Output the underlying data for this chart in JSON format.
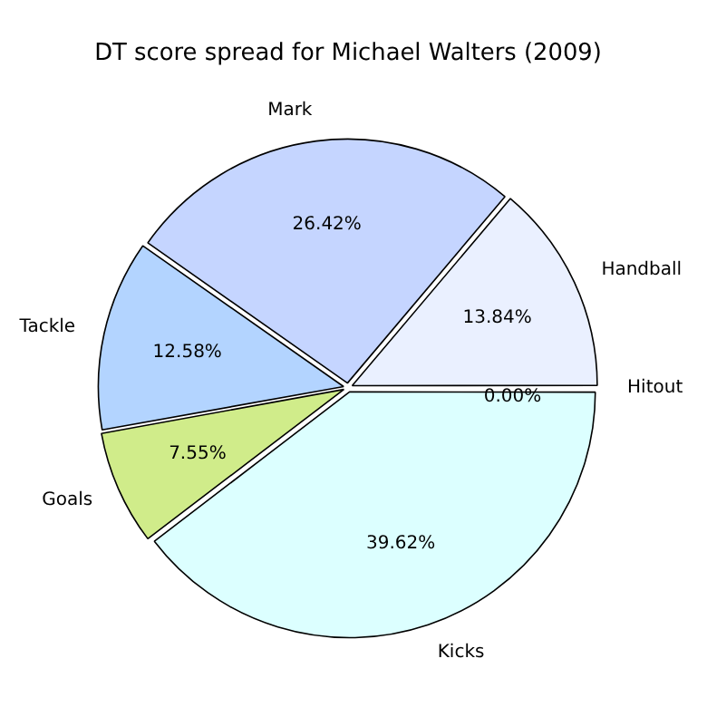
{
  "chart_data": {
    "type": "pie",
    "title": "DT score spread for Michael Walters (2009)",
    "categories": [
      "Hitout",
      "Kicks",
      "Goals",
      "Tackle",
      "Mark",
      "Handball"
    ],
    "values": [
      0.0,
      39.62,
      7.55,
      12.58,
      26.42,
      13.84
    ],
    "colors": [
      "#e0e0ff",
      "#dcffff",
      "#d0ec8a",
      "#b3d4ff",
      "#c5d5ff",
      "#eaf0ff"
    ],
    "value_labels": [
      "0.00%",
      "39.62%",
      "7.55%",
      "12.58%",
      "26.42%",
      "13.84%"
    ],
    "legend": false
  }
}
